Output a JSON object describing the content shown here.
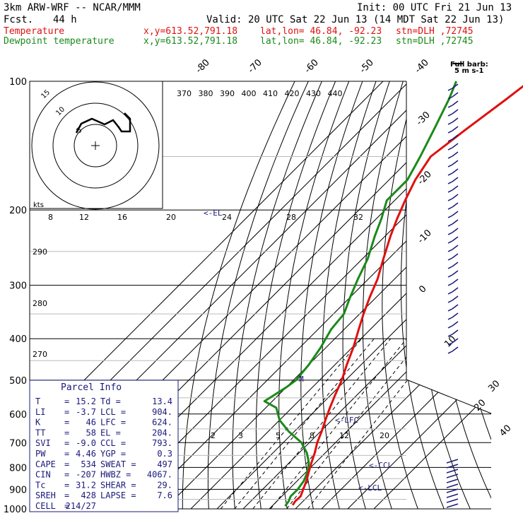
{
  "header": {
    "model": "3km ARW-WRF -- NCAR/MMM",
    "init": "Init: 00 UTC Fri 21 Jun 13",
    "fcst_label": "Fcst.",
    "fcst_value": "44 h",
    "valid": "Valid: 20 UTC Sat 22 Jun 13 (14 MDT Sat 22 Jun 13)",
    "temp_line": {
      "name": "Temperature",
      "xy": "x,y=613.52,791.18",
      "latlon": "lat,lon= 46.84, -92.23",
      "stn": "stn=DLH ,72745"
    },
    "dew_line": {
      "name": "Dewpoint temperature",
      "xy": "x,y=613.52,791.18",
      "latlon": "lat,lon= 46.84, -92.23",
      "stn": "stn=DLH ,72745"
    }
  },
  "colors": {
    "temperature": "#e01010",
    "dewpoint": "#1a8a1a",
    "navy": "#1a1a7a",
    "grid": "#000000",
    "theta_line": "#000000"
  },
  "legend_barb": {
    "title": "Full barb:",
    "value": "5 m s-1"
  },
  "hodograph": {
    "unit_label": "kts",
    "ring_labels": [
      "5",
      "10",
      "15"
    ],
    "bottom_ticks": [
      "8",
      "12",
      "16",
      "20",
      "24",
      "28",
      "32"
    ]
  },
  "pressure_labels": [
    "100",
    "200",
    "300",
    "400",
    "500",
    "600",
    "700",
    "800",
    "900",
    "1000"
  ],
  "temp_diag_labels": [
    "-80",
    "-70",
    "-60",
    "-50",
    "-40",
    "-30",
    "-20",
    "-10",
    "0",
    "10",
    "20",
    "30",
    "40"
  ],
  "theta_top_labels": [
    "370",
    "380",
    "390",
    "400",
    "410",
    "420",
    "430",
    "440"
  ],
  "theta_left_labels": [
    "290",
    "280",
    "270"
  ],
  "mixing_labels": [
    "2",
    "3",
    "5",
    "8",
    "12",
    "20"
  ],
  "markers": {
    "el": "<-EL",
    "lfc": "<-LFC",
    "ccl": "<-CCL",
    "lcl": "<-LCL",
    "m": "M"
  },
  "parcel": {
    "title": "Parcel Info",
    "rows": [
      {
        "k1": "T",
        "v1": "15.2",
        "k2": "Td",
        "v2": "13.4"
      },
      {
        "k1": "LI",
        "v1": "-3.7",
        "k2": "LCL",
        "v2": "904."
      },
      {
        "k1": "K",
        "v1": "46",
        "k2": "LFC",
        "v2": "624."
      },
      {
        "k1": "TT",
        "v1": "58",
        "k2": "EL",
        "v2": "204."
      },
      {
        "k1": "SVI",
        "v1": "-9.0",
        "k2": "CCL",
        "v2": "793."
      },
      {
        "k1": "PW",
        "v1": "4.46",
        "k2": "YGP",
        "v2": "0.3"
      },
      {
        "k1": "CAPE",
        "v1": "534",
        "k2": "SWEAT",
        "v2": "497"
      },
      {
        "k1": "CIN",
        "v1": "-207",
        "k2": "HWBZ",
        "v2": "4067."
      },
      {
        "k1": "Tc",
        "v1": "31.2",
        "k2": "SHEAR",
        "v2": "29."
      },
      {
        "k1": "SREH",
        "v1": "428",
        "k2": "LAPSE",
        "v2": "7.6"
      },
      {
        "k1": "CELL",
        "v1": "214/27",
        "k2": "",
        "v2": ""
      }
    ]
  },
  "chart_data": {
    "type": "line",
    "title": "",
    "ylabel": "",
    "xlabel": "",
    "y_scale": "log-pressure",
    "ylim": [
      1000,
      100
    ],
    "series": [
      {
        "name": "Temperature",
        "pressure": [
          980,
          960,
          935,
          900,
          860,
          820,
          780,
          740,
          700,
          660,
          620,
          580,
          540,
          500,
          460,
          420,
          380,
          350,
          320,
          290,
          260,
          230,
          210,
          190,
          170,
          150,
          130,
          110,
          100
        ],
        "temp_c": [
          17.5,
          17,
          17.2,
          15.5,
          13.5,
          11,
          8.5,
          6,
          3,
          0.5,
          -2.5,
          -5.5,
          -8.5,
          -11.5,
          -15.5,
          -19.5,
          -24.5,
          -28.5,
          -32.5,
          -36.5,
          -42,
          -48,
          -52,
          -56,
          -60,
          -63,
          -60,
          -56,
          -54
        ]
      },
      {
        "name": "Dewpoint temperature",
        "pressure": [
          985,
          960,
          935,
          900,
          860,
          820,
          780,
          740,
          700,
          660,
          620,
          580,
          560,
          520,
          500,
          460,
          420,
          380,
          350,
          320,
          290,
          260,
          230,
          210,
          190,
          170,
          150,
          130,
          110,
          100
        ],
        "temp_c": [
          15,
          14.5,
          13.4,
          13.4,
          12.5,
          10.5,
          7.5,
          3,
          -3,
          -12,
          -20,
          -26,
          -33,
          -30,
          -29,
          -30,
          -32,
          -35,
          -36,
          -40,
          -44,
          -48,
          -54,
          -58,
          -63,
          -63,
          -67,
          -72,
          -78,
          -82
        ]
      }
    ]
  }
}
